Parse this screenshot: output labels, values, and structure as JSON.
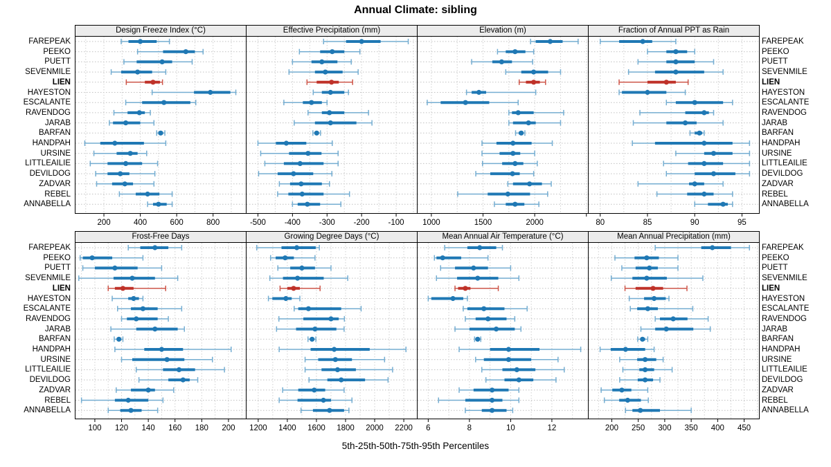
{
  "title": "Annual Climate: sibling",
  "footer": "5th-25th-50th-75th-95th Percentiles",
  "highlight_site": "LIEN",
  "sites": [
    "FAREPEAK",
    "PEEKO",
    "PUETT",
    "SEVENMILE",
    "LIEN",
    "HAYESTON",
    "ESCALANTE",
    "RAVENDOG",
    "JARAB",
    "BARFAN",
    "HANDPAH",
    "URSINE",
    "LITTLEAILIE",
    "DEVILDOG",
    "ZADVAR",
    "REBEL",
    "ANNABELLA"
  ],
  "colors": {
    "blue_main": "#1f78b4",
    "blue_light": "#74add1",
    "red_main": "#bf3229",
    "red_light": "#cd5549",
    "strip_bg": "#ececec",
    "grid": "#cfcfcf",
    "guide": "#c0c0c0",
    "border": "#000000"
  },
  "chart_data": [
    {
      "type": "percentile-range",
      "grid_row": 1,
      "grid_col": 1,
      "title": "Design Freeze Index (°C)",
      "percentiles": [
        5,
        25,
        50,
        75,
        95
      ],
      "domain": [
        40,
        980
      ],
      "ticks": [
        200,
        400,
        600,
        800
      ],
      "grid_step": 100,
      "values": [
        [
          295,
          335,
          400,
          490,
          560
        ],
        [
          385,
          525,
          650,
          700,
          745
        ],
        [
          310,
          380,
          520,
          575,
          685
        ],
        [
          240,
          295,
          385,
          465,
          540
        ],
        [
          323,
          425,
          470,
          508,
          522
        ],
        [
          465,
          695,
          785,
          895,
          925
        ],
        [
          320,
          410,
          530,
          675,
          705
        ],
        [
          255,
          330,
          395,
          425,
          455
        ],
        [
          230,
          250,
          320,
          400,
          475
        ],
        [
          490,
          500,
          512,
          525,
          535
        ],
        [
          95,
          180,
          260,
          420,
          540
        ],
        [
          145,
          270,
          345,
          385,
          435
        ],
        [
          125,
          220,
          320,
          410,
          495
        ],
        [
          155,
          220,
          290,
          340,
          480
        ],
        [
          160,
          245,
          315,
          360,
          475
        ],
        [
          285,
          375,
          440,
          505,
          575
        ],
        [
          440,
          470,
          500,
          545,
          575
        ]
      ]
    },
    {
      "type": "percentile-range",
      "grid_row": 1,
      "grid_col": 2,
      "title": "Effective Precipitation (mm)",
      "percentiles": [
        5,
        25,
        50,
        75,
        95
      ],
      "domain": [
        -535,
        -40
      ],
      "ticks": [
        -500,
        -400,
        -300,
        -200,
        -100
      ],
      "grid_step": 50,
      "values": [
        [
          -310,
          -245,
          -200,
          -145,
          -65
        ],
        [
          -380,
          -320,
          -285,
          -250,
          -205
        ],
        [
          -400,
          -345,
          -315,
          -270,
          -230
        ],
        [
          -410,
          -335,
          -305,
          -255,
          -210
        ],
        [
          -358,
          -330,
          -287,
          -266,
          -226
        ],
        [
          -340,
          -315,
          -290,
          -250,
          -238
        ],
        [
          -425,
          -370,
          -345,
          -315,
          -300
        ],
        [
          -355,
          -315,
          -293,
          -250,
          -180
        ],
        [
          -395,
          -335,
          -290,
          -215,
          -170
        ],
        [
          -341,
          -336,
          -330,
          -324,
          -319
        ],
        [
          -500,
          -448,
          -418,
          -360,
          -285
        ],
        [
          -492,
          -410,
          -355,
          -316,
          -268
        ],
        [
          -480,
          -425,
          -378,
          -310,
          -268
        ],
        [
          -498,
          -443,
          -397,
          -340,
          -286
        ],
        [
          -438,
          -407,
          -375,
          -315,
          -293
        ],
        [
          -443,
          -412,
          -372,
          -310,
          -235
        ],
        [
          -400,
          -385,
          -357,
          -320,
          -260
        ]
      ]
    },
    {
      "type": "percentile-range",
      "grid_row": 1,
      "grid_col": 3,
      "title": "Elevation (m)",
      "percentiles": [
        5,
        25,
        50,
        75,
        95
      ],
      "domain": [
        860,
        2515
      ],
      "ticks": [
        1000,
        1500,
        2000,
        2500
      ],
      "labeled_ticks": [
        1000,
        1500,
        2000
      ],
      "grid_step": 250,
      "values": [
        [
          1960,
          2010,
          2150,
          2270,
          2420
        ],
        [
          1640,
          1720,
          1810,
          1910,
          1990
        ],
        [
          1390,
          1590,
          1680,
          1780,
          1980
        ],
        [
          1720,
          1870,
          1990,
          2130,
          2250
        ],
        [
          1850,
          1915,
          1990,
          2050,
          2105
        ],
        [
          1340,
          1390,
          1460,
          1530,
          2010
        ],
        [
          960,
          1090,
          1330,
          1560,
          1840
        ],
        [
          1750,
          1780,
          1840,
          1990,
          2280
        ],
        [
          1750,
          1790,
          1940,
          2010,
          2250
        ],
        [
          1815,
          1845,
          1870,
          1890,
          1905
        ],
        [
          1490,
          1630,
          1790,
          1970,
          2170
        ],
        [
          1490,
          1660,
          1790,
          1860,
          2000
        ],
        [
          1495,
          1685,
          1810,
          1890,
          2025
        ],
        [
          1430,
          1570,
          1785,
          1855,
          1990
        ],
        [
          1740,
          1790,
          1950,
          2070,
          2160
        ],
        [
          1255,
          1545,
          1740,
          1955,
          2125
        ],
        [
          1610,
          1720,
          1810,
          1900,
          2040
        ]
      ]
    },
    {
      "type": "percentile-range",
      "grid_row": 1,
      "grid_col": 4,
      "title": "Fraction of Annual PPT as Rain",
      "percentiles": [
        5,
        25,
        50,
        75,
        95
      ],
      "domain": [
        78.7,
        96.8
      ],
      "ticks": [
        80,
        85,
        90,
        95
      ],
      "grid_step": 2.5,
      "values": [
        [
          80,
          82,
          84.5,
          85.5,
          88
        ],
        [
          85,
          87,
          88,
          89.2,
          90
        ],
        [
          84,
          87,
          88,
          90,
          92
        ],
        [
          83,
          85.8,
          88,
          91,
          93
        ],
        [
          82,
          85,
          87,
          88,
          89.3
        ],
        [
          82,
          82.3,
          85,
          87,
          89
        ],
        [
          87,
          88,
          90,
          93,
          94
        ],
        [
          84.2,
          89,
          91,
          91.5,
          92
        ],
        [
          83.5,
          87,
          89,
          90.2,
          93
        ],
        [
          89.5,
          90,
          90.5,
          90.8,
          91
        ],
        [
          83.4,
          85.8,
          91,
          94,
          95.8
        ],
        [
          88,
          91,
          92,
          94,
          95.8
        ],
        [
          86.7,
          89.3,
          91,
          93,
          95.8
        ],
        [
          87,
          90,
          92,
          94.3,
          95.8
        ],
        [
          84,
          89.4,
          90,
          91,
          93
        ],
        [
          86,
          89.2,
          91,
          92,
          94
        ],
        [
          90,
          91.4,
          93,
          93.5,
          94
        ]
      ]
    },
    {
      "type": "percentile-range",
      "grid_row": 2,
      "grid_col": 1,
      "title": "Frost-Free Days",
      "percentiles": [
        5,
        25,
        50,
        75,
        95
      ],
      "domain": [
        85,
        213
      ],
      "ticks": [
        100,
        120,
        140,
        160,
        180,
        200
      ],
      "grid_step": 10,
      "values": [
        [
          125,
          134,
          145,
          155,
          165
        ],
        [
          89,
          91,
          98,
          113,
          136
        ],
        [
          91,
          100,
          115,
          132,
          150
        ],
        [
          88,
          114,
          128,
          145,
          162
        ],
        [
          110,
          115,
          121,
          129,
          153
        ],
        [
          113,
          125,
          129,
          133,
          136
        ],
        [
          117,
          127,
          136,
          147,
          165
        ],
        [
          120,
          124,
          131,
          147,
          155
        ],
        [
          112,
          131,
          145,
          162,
          167
        ],
        [
          114.5,
          116.5,
          118,
          119.5,
          121
        ],
        [
          115,
          137,
          150,
          166,
          202
        ],
        [
          120,
          128,
          154,
          167,
          188
        ],
        [
          131,
          151,
          163,
          175,
          197
        ],
        [
          133,
          155,
          166,
          171,
          177
        ],
        [
          116,
          127,
          140,
          145,
          159
        ],
        [
          90,
          115,
          125,
          140,
          151
        ],
        [
          110,
          119,
          127,
          135,
          147
        ]
      ]
    },
    {
      "type": "percentile-range",
      "grid_row": 2,
      "grid_col": 2,
      "title": "Growing Degree Days (°C)",
      "percentiles": [
        5,
        25,
        50,
        75,
        95
      ],
      "domain": [
        1115,
        2290
      ],
      "ticks": [
        1200,
        1400,
        1600,
        1800,
        2000,
        2200
      ],
      "grid_step": 100,
      "values": [
        [
          1190,
          1360,
          1465,
          1595,
          1620
        ],
        [
          1285,
          1320,
          1385,
          1445,
          1590
        ],
        [
          1335,
          1420,
          1500,
          1590,
          1700
        ],
        [
          1280,
          1370,
          1470,
          1650,
          1815
        ],
        [
          1350,
          1400,
          1443,
          1486,
          1625
        ],
        [
          1270,
          1297,
          1390,
          1430,
          1486
        ],
        [
          1447,
          1475,
          1545,
          1770,
          1907
        ],
        [
          1342,
          1510,
          1700,
          1753,
          1792
        ],
        [
          1326,
          1460,
          1590,
          1737,
          1790
        ],
        [
          1542,
          1557,
          1570,
          1583,
          1596
        ],
        [
          1344,
          1560,
          1722,
          1966,
          2215
        ],
        [
          1522,
          1612,
          1730,
          1844,
          2068
        ],
        [
          1522,
          1635,
          1745,
          1871,
          2123
        ],
        [
          1549,
          1675,
          1770,
          1934,
          2092
        ],
        [
          1368,
          1475,
          1585,
          1660,
          1790
        ],
        [
          1344,
          1470,
          1648,
          1700,
          1844
        ],
        [
          1494,
          1576,
          1690,
          1790,
          1823
        ]
      ]
    },
    {
      "type": "percentile-range",
      "grid_row": 2,
      "grid_col": 3,
      "title": "Mean Annual Air Temperature (°C)",
      "percentiles": [
        5,
        25,
        50,
        75,
        95
      ],
      "domain": [
        5.45,
        13.75
      ],
      "ticks": [
        6,
        8,
        10,
        12
      ],
      "grid_step": 1,
      "values": [
        [
          6.8,
          7.9,
          8.5,
          9.3,
          9.6
        ],
        [
          6.3,
          6.4,
          6.7,
          7.6,
          8.9
        ],
        [
          6.6,
          7.3,
          8.2,
          8.9,
          10.0
        ],
        [
          6.4,
          7.4,
          8.4,
          9.4,
          10.4
        ],
        [
          7.3,
          7.45,
          7.8,
          8.05,
          9.4
        ],
        [
          6.0,
          6.15,
          7.2,
          7.7,
          7.9
        ],
        [
          7.7,
          7.9,
          8.7,
          9.7,
          10.8
        ],
        [
          7.8,
          8.3,
          8.9,
          9.8,
          10.2
        ],
        [
          7.3,
          8.0,
          9.3,
          10.2,
          10.5
        ],
        [
          8.25,
          8.32,
          8.4,
          8.48,
          8.55
        ],
        [
          7.5,
          9.0,
          9.9,
          11.4,
          13.4
        ],
        [
          8.3,
          8.7,
          9.9,
          11.0,
          12.3
        ],
        [
          8.6,
          9.6,
          10.3,
          11.2,
          12.6
        ],
        [
          8.8,
          9.7,
          10.4,
          11.1,
          12.2
        ],
        [
          7.5,
          8.2,
          9.1,
          9.9,
          10.4
        ],
        [
          6.5,
          7.8,
          9.1,
          9.6,
          10.4
        ],
        [
          7.8,
          8.6,
          9.1,
          9.8,
          10.1
        ]
      ]
    },
    {
      "type": "percentile-range",
      "grid_row": 2,
      "grid_col": 4,
      "title": "Mean Annual Precipitation (mm)",
      "percentiles": [
        5,
        25,
        50,
        75,
        95
      ],
      "domain": [
        155,
        478
      ],
      "ticks": [
        200,
        250,
        300,
        350,
        400,
        450
      ],
      "grid_step": 25,
      "values": [
        [
          282,
          369,
          390,
          425,
          460
        ],
        [
          206,
          243,
          266,
          289,
          325
        ],
        [
          219,
          245,
          271,
          287,
          325
        ],
        [
          199,
          239,
          266,
          304,
          372
        ],
        [
          225,
          245,
          278,
          297,
          342
        ],
        [
          233,
          261,
          280,
          302,
          308
        ],
        [
          235,
          248,
          268,
          287,
          353
        ],
        [
          282,
          291,
          316,
          343,
          382
        ],
        [
          255,
          282,
          303,
          354,
          386
        ],
        [
          249,
          254,
          258,
          263,
          268
        ],
        [
          178,
          198,
          226,
          263,
          280
        ],
        [
          215,
          248,
          263,
          284,
          297
        ],
        [
          221,
          252,
          263,
          280,
          314
        ],
        [
          215,
          249,
          263,
          278,
          291
        ],
        [
          180,
          201,
          219,
          237,
          268
        ],
        [
          186,
          214,
          230,
          255,
          269
        ],
        [
          226,
          239,
          254,
          291,
          350
        ]
      ]
    }
  ]
}
